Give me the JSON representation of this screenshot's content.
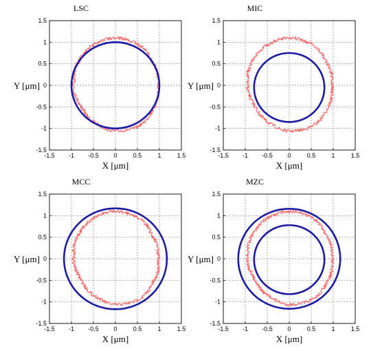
{
  "colors": {
    "measured": "#ff3b3b",
    "reference_circle": "#1a1aa6",
    "grid": "#7f7f7f",
    "frame": "#000000"
  },
  "chart_data": [
    {
      "type": "scatter",
      "title": "LSC",
      "xlabel": "X [μm]",
      "ylabel": "Y [μm]",
      "xlim": [
        -1.5,
        1.5
      ],
      "ylim": [
        -1.5,
        1.5
      ],
      "xticks": [
        "-1.5",
        "-1",
        "-0.5",
        "0",
        "0.5",
        "1",
        "1.5"
      ],
      "yticks": [
        "-1.5",
        "-1",
        "-0.5",
        "0",
        "0.5",
        "1",
        "1.5"
      ],
      "grid": true,
      "measured_profile": {
        "center": [
          0.0,
          0.0
        ],
        "angles_deg": [
          0,
          30,
          60,
          90,
          120,
          150,
          180,
          210,
          240,
          270,
          300,
          330
        ],
        "radii": [
          0.98,
          1.0,
          1.08,
          1.1,
          1.06,
          1.0,
          0.95,
          0.92,
          0.98,
          1.06,
          1.08,
          1.02
        ]
      },
      "reference_circles": [
        {
          "center": [
            0.0,
            0.0
          ],
          "radius": 1.0
        }
      ]
    },
    {
      "type": "scatter",
      "title": "MIC",
      "xlabel": "X [μm]",
      "ylabel": "Y [μm]",
      "xlim": [
        -1.5,
        1.5
      ],
      "ylim": [
        -1.5,
        1.5
      ],
      "xticks": [
        "-1.5",
        "-1",
        "-0.5",
        "0",
        "0.5",
        "1",
        "1.5"
      ],
      "yticks": [
        "-1.5",
        "-1",
        "-0.5",
        "0",
        "0.5",
        "1",
        "1.5"
      ],
      "grid": true,
      "measured_profile": {
        "center": [
          0.0,
          0.0
        ],
        "angles_deg": [
          0,
          30,
          60,
          90,
          120,
          150,
          180,
          210,
          240,
          270,
          300,
          330
        ],
        "radii": [
          0.98,
          1.0,
          1.08,
          1.1,
          1.06,
          1.0,
          0.95,
          0.92,
          0.98,
          1.06,
          1.08,
          1.02
        ]
      },
      "reference_circles": [
        {
          "center": [
            0.0,
            -0.05
          ],
          "radius": 0.8
        }
      ]
    },
    {
      "type": "scatter",
      "title": "MCC",
      "xlabel": "X [μm]",
      "ylabel": "Y [μm]",
      "xlim": [
        -1.5,
        1.5
      ],
      "ylim": [
        -1.5,
        1.5
      ],
      "xticks": [
        "-1.5",
        "-1",
        "-0.5",
        "0",
        "0.5",
        "1",
        "1.5"
      ],
      "yticks": [
        "-1.5",
        "-1",
        "-0.5",
        "0",
        "0.5",
        "1",
        "1.5"
      ],
      "grid": true,
      "measured_profile": {
        "center": [
          0.0,
          0.0
        ],
        "angles_deg": [
          0,
          30,
          60,
          90,
          120,
          150,
          180,
          210,
          240,
          270,
          300,
          330
        ],
        "radii": [
          0.98,
          1.0,
          1.08,
          1.1,
          1.06,
          1.0,
          0.95,
          0.92,
          0.98,
          1.06,
          1.08,
          1.02
        ]
      },
      "reference_circles": [
        {
          "center": [
            0.0,
            0.0
          ],
          "radius": 1.17
        }
      ]
    },
    {
      "type": "scatter",
      "title": "MZC",
      "xlabel": "X [μm]",
      "ylabel": "Y [μm]",
      "xlim": [
        -1.5,
        1.5
      ],
      "ylim": [
        -1.5,
        1.5
      ],
      "xticks": [
        "-1.5",
        "-1",
        "-0.5",
        "0",
        "0.5",
        "1",
        "1.5"
      ],
      "yticks": [
        "-1.5",
        "-1",
        "-0.5",
        "0",
        "0.5",
        "1",
        "1.5"
      ],
      "grid": true,
      "measured_profile": {
        "center": [
          0.0,
          0.0
        ],
        "angles_deg": [
          0,
          30,
          60,
          90,
          120,
          150,
          180,
          210,
          240,
          270,
          300,
          330
        ],
        "radii": [
          0.98,
          1.0,
          1.08,
          1.1,
          1.06,
          1.0,
          0.95,
          0.92,
          0.98,
          1.06,
          1.08,
          1.02
        ]
      },
      "reference_circles": [
        {
          "center": [
            0.0,
            0.0
          ],
          "radius": 1.16
        },
        {
          "center": [
            0.0,
            -0.02
          ],
          "radius": 0.8
        }
      ]
    }
  ]
}
